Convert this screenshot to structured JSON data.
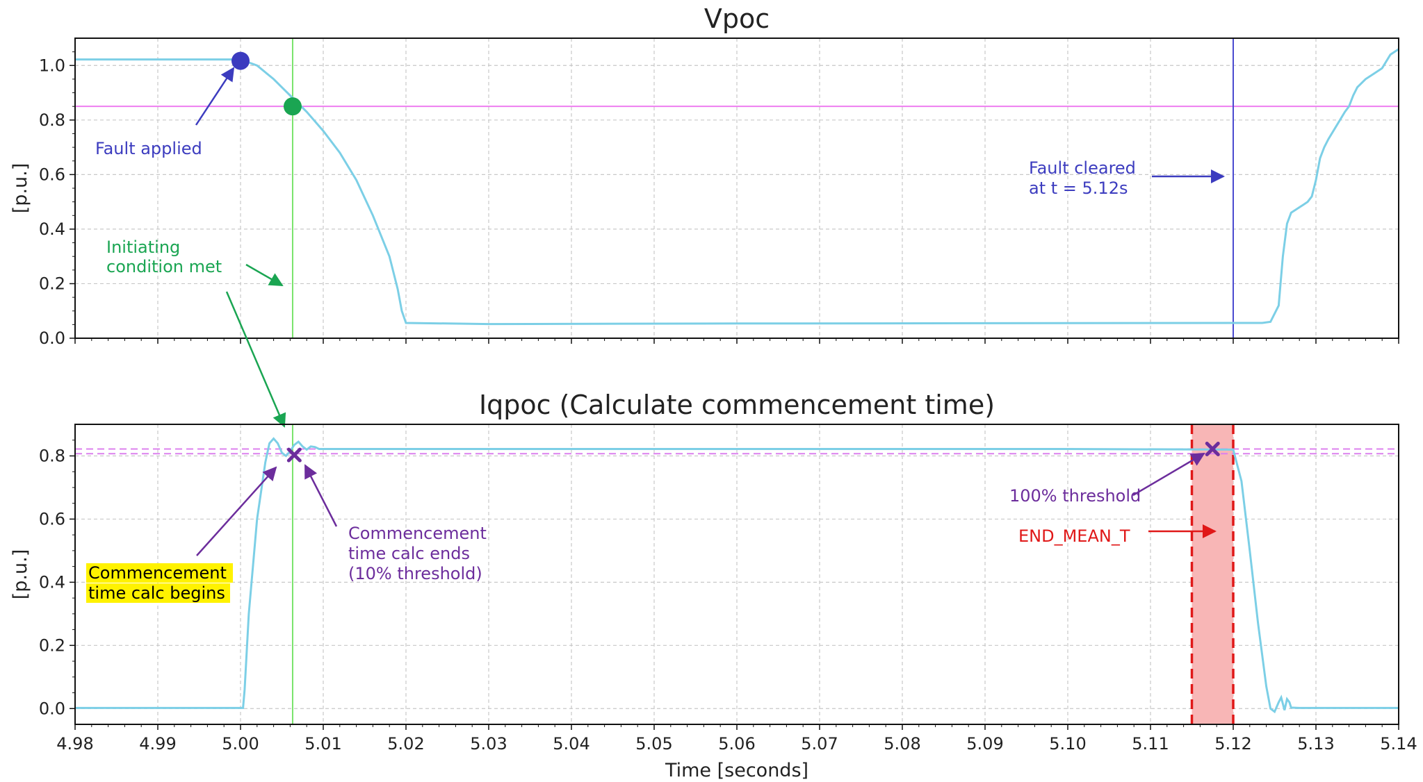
{
  "chart_data": [
    {
      "type": "line",
      "title": "Vpoc",
      "xlabel": "",
      "ylabel": "[p.u.]",
      "xlim": [
        4.98,
        5.14
      ],
      "ylim": [
        0.0,
        1.1
      ],
      "x_ticks": [
        4.98,
        4.99,
        5.0,
        5.01,
        5.02,
        5.03,
        5.04,
        5.05,
        5.06,
        5.07,
        5.08,
        5.09,
        5.1,
        5.11,
        5.12,
        5.13,
        5.14
      ],
      "y_ticks": [
        "0.0",
        "0.2",
        "0.4",
        "0.6",
        "0.8",
        "1.0"
      ],
      "grid": true,
      "series": [
        {
          "color": "#7ccfe6",
          "x": [
            4.98,
            5.0,
            5.002,
            5.004,
            5.006,
            5.008,
            5.01,
            5.012,
            5.014,
            5.016,
            5.018,
            5.019,
            5.0195,
            5.02,
            5.03,
            5.06,
            5.09,
            5.1235,
            5.1245,
            5.1255,
            5.126,
            5.1265,
            5.127,
            5.1275,
            5.128,
            5.1285,
            5.129,
            5.1295,
            5.13,
            5.1305,
            5.131,
            5.1315,
            5.1325,
            5.1335,
            5.134,
            5.1345,
            5.135,
            5.136,
            5.137,
            5.138,
            5.139,
            5.14
          ],
          "y": [
            1.022,
            1.022,
            1.0,
            0.95,
            0.89,
            0.83,
            0.76,
            0.68,
            0.58,
            0.45,
            0.3,
            0.18,
            0.1,
            0.056,
            0.052,
            0.054,
            0.055,
            0.056,
            0.06,
            0.12,
            0.3,
            0.42,
            0.46,
            0.47,
            0.48,
            0.49,
            0.5,
            0.52,
            0.58,
            0.66,
            0.7,
            0.73,
            0.78,
            0.83,
            0.85,
            0.89,
            0.92,
            0.95,
            0.97,
            0.99,
            1.04,
            1.06
          ]
        }
      ],
      "hlines": [
        {
          "y": 0.85,
          "color": "#ee7df0"
        }
      ],
      "vlines": [
        {
          "x": 5.0063,
          "color": "#79e36b"
        },
        {
          "x": 5.12,
          "color": "#4a4ad0"
        }
      ],
      "markers": [
        {
          "x": 5.0,
          "y": 1.017,
          "color": "#3b3bbf",
          "shape": "circle"
        },
        {
          "x": 5.0063,
          "y": 0.85,
          "color": "#1aa552",
          "shape": "circle"
        }
      ],
      "annotations": [
        {
          "text": "Fault applied",
          "color": "#3c3cbf"
        },
        {
          "text": "Initiating",
          "color": "#1aa552"
        },
        {
          "text": "condition met",
          "color": "#1aa552"
        },
        {
          "text": "Fault cleared",
          "color": "#3c3cbf"
        },
        {
          "text": "at t = 5.12s",
          "color": "#3c3cbf"
        }
      ]
    },
    {
      "type": "line",
      "title": "Iqpoc (Calculate commencement time)",
      "xlabel": "Time [seconds]",
      "ylabel": "[p.u.]",
      "xlim": [
        4.98,
        5.14
      ],
      "ylim": [
        -0.05,
        0.9
      ],
      "x_ticks": [
        4.98,
        4.99,
        5.0,
        5.01,
        5.02,
        5.03,
        5.04,
        5.05,
        5.06,
        5.07,
        5.08,
        5.09,
        5.1,
        5.11,
        5.12,
        5.13,
        5.14
      ],
      "x_tick_labels": [
        "4.98",
        "4.99",
        "5.00",
        "5.01",
        "5.02",
        "5.03",
        "5.04",
        "5.05",
        "5.06",
        "5.07",
        "5.08",
        "5.09",
        "5.10",
        "5.11",
        "5.12",
        "5.13",
        "5.14"
      ],
      "y_ticks": [
        "0.0",
        "0.2",
        "0.4",
        "0.6",
        "0.8"
      ],
      "grid": true,
      "series": [
        {
          "color": "#7ccfe6",
          "x": [
            4.98,
            5.0003,
            5.0005,
            5.001,
            5.002,
            5.003,
            5.0035,
            5.004,
            5.0045,
            5.005,
            5.0055,
            5.006,
            5.0065,
            5.007,
            5.0075,
            5.008,
            5.0085,
            5.009,
            5.0095,
            5.01,
            5.02,
            5.06,
            5.1,
            5.12,
            5.121,
            5.122,
            5.123,
            5.124,
            5.1245,
            5.125,
            5.1255,
            5.1258,
            5.126,
            5.1262,
            5.1265,
            5.1268,
            5.127,
            5.128,
            5.14
          ],
          "y": [
            0.002,
            0.002,
            0.06,
            0.3,
            0.6,
            0.78,
            0.84,
            0.855,
            0.84,
            0.81,
            0.8,
            0.815,
            0.835,
            0.845,
            0.83,
            0.82,
            0.83,
            0.828,
            0.822,
            0.822,
            0.822,
            0.822,
            0.822,
            0.82,
            0.72,
            0.5,
            0.27,
            0.07,
            0.0,
            -0.01,
            0.02,
            0.035,
            0.015,
            -0.005,
            0.03,
            0.02,
            0.003,
            0.002,
            0.002
          ]
        }
      ],
      "hlines": [
        {
          "y": 0.822,
          "color": "#dc80ee",
          "style": "dashed"
        },
        {
          "y": 0.807,
          "color": "#dc80ee",
          "style": "dashed"
        }
      ],
      "vlines": [
        {
          "x": 5.0063,
          "color": "#79e36b"
        }
      ],
      "shaded_region": {
        "x_start": 5.115,
        "x_end": 5.12,
        "fill": "#f8b6b6",
        "edge": "#e01818"
      },
      "markers": [
        {
          "x": 5.0065,
          "y": 0.803,
          "color": "#6c2d9c",
          "shape": "x"
        },
        {
          "x": 5.1175,
          "y": 0.822,
          "color": "#6c2d9c",
          "shape": "x"
        }
      ],
      "annotations": [
        {
          "text": "Commencement",
          "color": "#000000",
          "highlight": "#fff200"
        },
        {
          "text": "time calc begins",
          "color": "#000000",
          "highlight": "#fff200"
        },
        {
          "text": "Commencement",
          "color": "#6c2d9c"
        },
        {
          "text": "time calc ends",
          "color": "#6c2d9c"
        },
        {
          "text": "(10% threshold)",
          "color": "#6c2d9c"
        },
        {
          "text": "100% threshold",
          "color": "#6c2d9c"
        },
        {
          "text": "END_MEAN_T",
          "color": "#e01818"
        }
      ]
    }
  ]
}
